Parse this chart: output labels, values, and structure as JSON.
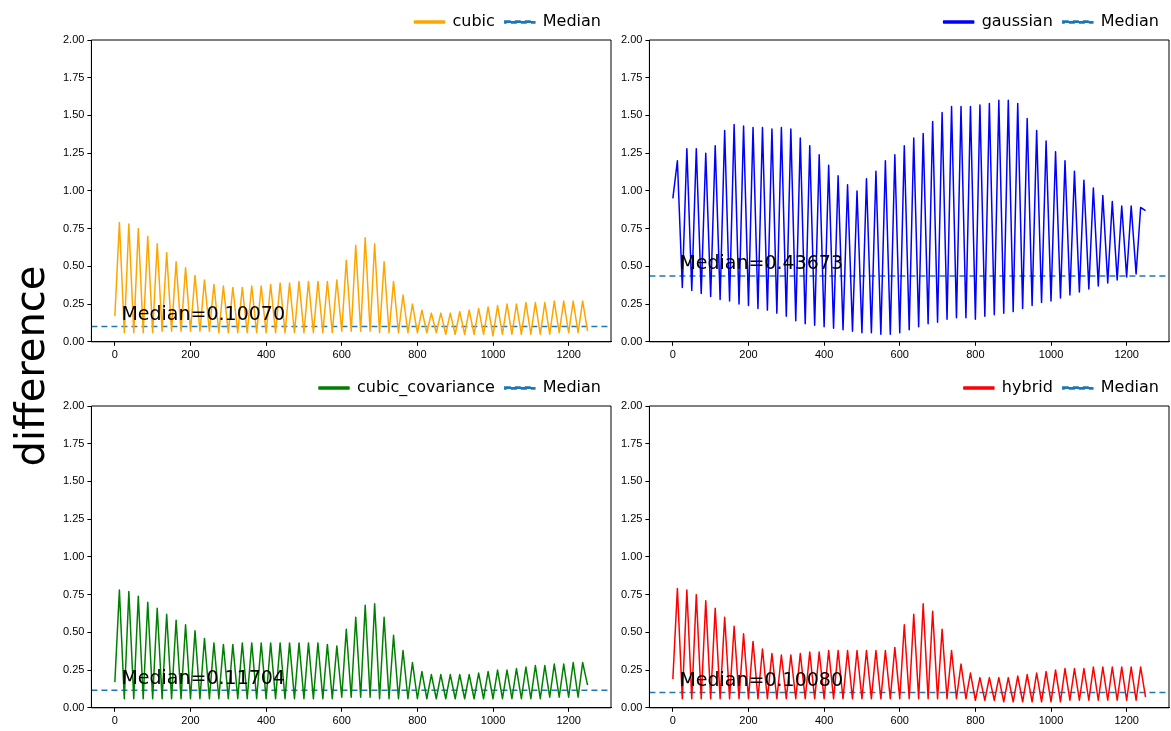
{
  "chart_data": [
    {
      "type": "line",
      "ylabel": "difference",
      "xlim": [
        -62,
        1312
      ],
      "xticks": [
        0,
        200,
        400,
        600,
        800,
        1000,
        1200
      ],
      "ylim": [
        0,
        2
      ],
      "yticks": [
        {
          "value": 0,
          "label": "0.00"
        },
        {
          "value": 0.25,
          "label": "0.25"
        },
        {
          "value": 0.5,
          "label": "0.50"
        },
        {
          "value": 0.75,
          "label": "0.75"
        },
        {
          "value": 1,
          "label": "1.00"
        },
        {
          "value": 1.25,
          "label": "1.25"
        },
        {
          "value": 1.5,
          "label": "1.50"
        },
        {
          "value": 1.75,
          "label": "1.75"
        },
        {
          "value": 2,
          "label": "2.00"
        }
      ],
      "grid": false,
      "legend": "top right",
      "line_style": "solid",
      "x": [
        0,
        12,
        25,
        37,
        50,
        62,
        75,
        87,
        100,
        112,
        125,
        137,
        150,
        162,
        175,
        187,
        200,
        212,
        225,
        237,
        250,
        262,
        275,
        287,
        300,
        312,
        325,
        337,
        350,
        362,
        375,
        387,
        400,
        412,
        425,
        437,
        450,
        462,
        475,
        487,
        500,
        512,
        525,
        537,
        550,
        562,
        575,
        587,
        600,
        612,
        625,
        637,
        650,
        662,
        675,
        687,
        700,
        712,
        725,
        737,
        750,
        762,
        775,
        787,
        800,
        812,
        825,
        837,
        850,
        862,
        875,
        887,
        900,
        912,
        925,
        937,
        950,
        962,
        975,
        987,
        1000,
        1012,
        1025,
        1037,
        1050,
        1062,
        1075,
        1087,
        1100,
        1112,
        1125,
        1137,
        1150,
        1162,
        1175,
        1187,
        1200,
        1212,
        1225,
        1237,
        1250
      ],
      "series": [
        {
          "name": "cubic",
          "color": "#ffa500",
          "values": [
            0.17,
            0.79,
            0.06,
            0.78,
            0.06,
            0.75,
            0.06,
            0.7,
            0.06,
            0.65,
            0.07,
            0.59,
            0.07,
            0.53,
            0.07,
            0.49,
            0.07,
            0.44,
            0.07,
            0.41,
            0.07,
            0.38,
            0.06,
            0.37,
            0.06,
            0.36,
            0.06,
            0.36,
            0.06,
            0.37,
            0.06,
            0.37,
            0.06,
            0.38,
            0.06,
            0.39,
            0.06,
            0.39,
            0.06,
            0.4,
            0.06,
            0.4,
            0.06,
            0.4,
            0.06,
            0.4,
            0.06,
            0.41,
            0.07,
            0.54,
            0.07,
            0.64,
            0.07,
            0.69,
            0.07,
            0.65,
            0.06,
            0.53,
            0.06,
            0.4,
            0.06,
            0.31,
            0.06,
            0.25,
            0.06,
            0.21,
            0.06,
            0.19,
            0.06,
            0.19,
            0.05,
            0.19,
            0.05,
            0.2,
            0.05,
            0.21,
            0.05,
            0.22,
            0.05,
            0.23,
            0.04,
            0.24,
            0.05,
            0.25,
            0.05,
            0.25,
            0.05,
            0.26,
            0.05,
            0.26,
            0.05,
            0.26,
            0.05,
            0.27,
            0.06,
            0.27,
            0.06,
            0.27,
            0.06,
            0.27,
            0.07
          ]
        }
      ],
      "ref_lines": [
        {
          "axis": "y",
          "value": 0.1007,
          "label": "Median",
          "color": "#1f77b4",
          "line_style": "dashed"
        }
      ],
      "annotations": [
        "Median=0.10070"
      ]
    },
    {
      "type": "line",
      "xlim": [
        -62,
        1312
      ],
      "xticks": [
        0,
        200,
        400,
        600,
        800,
        1000,
        1200
      ],
      "ylim": [
        0,
        2
      ],
      "yticks": [
        {
          "value": 0,
          "label": "0.00"
        },
        {
          "value": 0.25,
          "label": "0.25"
        },
        {
          "value": 0.5,
          "label": "0.50"
        },
        {
          "value": 0.75,
          "label": "0.75"
        },
        {
          "value": 1,
          "label": "1.00"
        },
        {
          "value": 1.25,
          "label": "1.25"
        },
        {
          "value": 1.5,
          "label": "1.50"
        },
        {
          "value": 1.75,
          "label": "1.75"
        },
        {
          "value": 2,
          "label": "2.00"
        }
      ],
      "grid": false,
      "legend": "top right",
      "line_style": "solid",
      "x": [
        0,
        12,
        25,
        37,
        50,
        62,
        75,
        87,
        100,
        112,
        125,
        137,
        150,
        162,
        175,
        187,
        200,
        212,
        225,
        237,
        250,
        262,
        275,
        287,
        300,
        312,
        325,
        337,
        350,
        362,
        375,
        387,
        400,
        412,
        425,
        437,
        450,
        462,
        475,
        487,
        500,
        512,
        525,
        537,
        550,
        562,
        575,
        587,
        600,
        612,
        625,
        637,
        650,
        662,
        675,
        687,
        700,
        712,
        725,
        737,
        750,
        762,
        775,
        787,
        800,
        812,
        825,
        837,
        850,
        862,
        875,
        887,
        900,
        912,
        925,
        937,
        950,
        962,
        975,
        987,
        1000,
        1012,
        1025,
        1037,
        1050,
        1062,
        1075,
        1087,
        1100,
        1112,
        1125,
        1137,
        1150,
        1162,
        1175,
        1187,
        1200,
        1212,
        1225,
        1237,
        1250
      ],
      "series": [
        {
          "name": "gaussian",
          "color": "#0000ff",
          "values": [
            0.95,
            1.2,
            0.36,
            1.28,
            0.34,
            1.28,
            0.32,
            1.25,
            0.3,
            1.3,
            0.28,
            1.4,
            0.27,
            1.44,
            0.25,
            1.43,
            0.24,
            1.42,
            0.22,
            1.42,
            0.21,
            1.41,
            0.19,
            1.42,
            0.17,
            1.41,
            0.14,
            1.35,
            0.12,
            1.3,
            0.11,
            1.24,
            0.1,
            1.17,
            0.09,
            1.1,
            0.08,
            1.04,
            0.07,
            1.0,
            0.06,
            1.08,
            0.06,
            1.13,
            0.05,
            1.2,
            0.05,
            1.24,
            0.06,
            1.3,
            0.08,
            1.35,
            0.1,
            1.38,
            0.12,
            1.46,
            0.13,
            1.52,
            0.15,
            1.56,
            0.16,
            1.56,
            0.16,
            1.56,
            0.15,
            1.57,
            0.17,
            1.58,
            0.18,
            1.6,
            0.19,
            1.6,
            0.2,
            1.58,
            0.22,
            1.48,
            0.24,
            1.4,
            0.26,
            1.33,
            0.27,
            1.26,
            0.29,
            1.2,
            0.31,
            1.13,
            0.33,
            1.07,
            0.35,
            1.02,
            0.37,
            0.97,
            0.39,
            0.93,
            0.41,
            0.9,
            0.43,
            0.9,
            0.45,
            0.89,
            0.87
          ]
        }
      ],
      "ref_lines": [
        {
          "axis": "y",
          "value": 0.43673,
          "label": "Median",
          "color": "#1f77b4",
          "line_style": "dashed"
        }
      ],
      "annotations": [
        "Median=0.43673"
      ]
    },
    {
      "type": "line",
      "xlim": [
        -62,
        1312
      ],
      "xticks": [
        0,
        200,
        400,
        600,
        800,
        1000,
        1200
      ],
      "ylim": [
        0,
        2
      ],
      "yticks": [
        {
          "value": 0,
          "label": "0.00"
        },
        {
          "value": 0.25,
          "label": "0.25"
        },
        {
          "value": 0.5,
          "label": "0.50"
        },
        {
          "value": 0.75,
          "label": "0.75"
        },
        {
          "value": 1,
          "label": "1.00"
        },
        {
          "value": 1.25,
          "label": "1.25"
        },
        {
          "value": 1.5,
          "label": "1.50"
        },
        {
          "value": 1.75,
          "label": "1.75"
        },
        {
          "value": 2,
          "label": "2.00"
        }
      ],
      "grid": false,
      "legend": "top right",
      "line_style": "solid",
      "x": [
        0,
        12,
        25,
        37,
        50,
        62,
        75,
        87,
        100,
        112,
        125,
        137,
        150,
        162,
        175,
        187,
        200,
        212,
        225,
        237,
        250,
        262,
        275,
        287,
        300,
        312,
        325,
        337,
        350,
        362,
        375,
        387,
        400,
        412,
        425,
        437,
        450,
        462,
        475,
        487,
        500,
        512,
        525,
        537,
        550,
        562,
        575,
        587,
        600,
        612,
        625,
        637,
        650,
        662,
        675,
        687,
        700,
        712,
        725,
        737,
        750,
        762,
        775,
        787,
        800,
        812,
        825,
        837,
        850,
        862,
        875,
        887,
        900,
        912,
        925,
        937,
        950,
        962,
        975,
        987,
        1000,
        1012,
        1025,
        1037,
        1050,
        1062,
        1075,
        1087,
        1100,
        1112,
        1125,
        1137,
        1150,
        1162,
        1175,
        1187,
        1200,
        1212,
        1225,
        1237,
        1250
      ],
      "series": [
        {
          "name": "cubic_covariance",
          "color": "#008000",
          "values": [
            0.17,
            0.78,
            0.06,
            0.77,
            0.06,
            0.74,
            0.06,
            0.7,
            0.06,
            0.66,
            0.06,
            0.62,
            0.06,
            0.58,
            0.06,
            0.55,
            0.06,
            0.51,
            0.06,
            0.46,
            0.06,
            0.43,
            0.06,
            0.42,
            0.06,
            0.42,
            0.06,
            0.43,
            0.06,
            0.43,
            0.06,
            0.43,
            0.06,
            0.43,
            0.06,
            0.43,
            0.06,
            0.43,
            0.06,
            0.43,
            0.06,
            0.43,
            0.06,
            0.43,
            0.06,
            0.42,
            0.06,
            0.41,
            0.07,
            0.52,
            0.07,
            0.6,
            0.07,
            0.68,
            0.07,
            0.69,
            0.06,
            0.6,
            0.06,
            0.48,
            0.06,
            0.38,
            0.06,
            0.3,
            0.06,
            0.24,
            0.06,
            0.22,
            0.06,
            0.22,
            0.06,
            0.22,
            0.06,
            0.22,
            0.06,
            0.22,
            0.06,
            0.23,
            0.06,
            0.24,
            0.06,
            0.25,
            0.06,
            0.25,
            0.06,
            0.26,
            0.06,
            0.27,
            0.06,
            0.28,
            0.06,
            0.28,
            0.07,
            0.29,
            0.07,
            0.29,
            0.07,
            0.3,
            0.07,
            0.3,
            0.15
          ]
        }
      ],
      "ref_lines": [
        {
          "axis": "y",
          "value": 0.11704,
          "label": "Median",
          "color": "#1f77b4",
          "line_style": "dashed"
        }
      ],
      "annotations": [
        "Median=0.11704"
      ]
    },
    {
      "type": "line",
      "xlim": [
        -62,
        1312
      ],
      "xticks": [
        0,
        200,
        400,
        600,
        800,
        1000,
        1200
      ],
      "ylim": [
        0,
        2
      ],
      "yticks": [
        {
          "value": 0,
          "label": "0.00"
        },
        {
          "value": 0.25,
          "label": "0.25"
        },
        {
          "value": 0.5,
          "label": "0.50"
        },
        {
          "value": 0.75,
          "label": "0.75"
        },
        {
          "value": 1,
          "label": "1.00"
        },
        {
          "value": 1.25,
          "label": "1.25"
        },
        {
          "value": 1.5,
          "label": "1.50"
        },
        {
          "value": 1.75,
          "label": "1.75"
        },
        {
          "value": 2,
          "label": "2.00"
        }
      ],
      "grid": false,
      "legend": "top right",
      "line_style": "solid",
      "x": [
        0,
        12,
        25,
        37,
        50,
        62,
        75,
        87,
        100,
        112,
        125,
        137,
        150,
        162,
        175,
        187,
        200,
        212,
        225,
        237,
        250,
        262,
        275,
        287,
        300,
        312,
        325,
        337,
        350,
        362,
        375,
        387,
        400,
        412,
        425,
        437,
        450,
        462,
        475,
        487,
        500,
        512,
        525,
        537,
        550,
        562,
        575,
        587,
        600,
        612,
        625,
        637,
        650,
        662,
        675,
        687,
        700,
        712,
        725,
        737,
        750,
        762,
        775,
        787,
        800,
        812,
        825,
        837,
        850,
        862,
        875,
        887,
        900,
        912,
        925,
        937,
        950,
        962,
        975,
        987,
        1000,
        1012,
        1025,
        1037,
        1050,
        1062,
        1075,
        1087,
        1100,
        1112,
        1125,
        1137,
        1150,
        1162,
        1175,
        1187,
        1200,
        1212,
        1225,
        1237,
        1250
      ],
      "series": [
        {
          "name": "hybrid",
          "color": "#ff0000",
          "values": [
            0.19,
            0.79,
            0.06,
            0.78,
            0.06,
            0.75,
            0.06,
            0.71,
            0.06,
            0.66,
            0.06,
            0.6,
            0.06,
            0.54,
            0.06,
            0.49,
            0.06,
            0.44,
            0.06,
            0.39,
            0.06,
            0.36,
            0.06,
            0.35,
            0.06,
            0.35,
            0.06,
            0.36,
            0.06,
            0.37,
            0.06,
            0.37,
            0.06,
            0.38,
            0.06,
            0.38,
            0.06,
            0.38,
            0.06,
            0.38,
            0.06,
            0.38,
            0.06,
            0.38,
            0.06,
            0.38,
            0.06,
            0.4,
            0.06,
            0.55,
            0.06,
            0.62,
            0.06,
            0.69,
            0.06,
            0.64,
            0.06,
            0.52,
            0.06,
            0.38,
            0.06,
            0.29,
            0.06,
            0.23,
            0.05,
            0.2,
            0.05,
            0.2,
            0.05,
            0.2,
            0.04,
            0.2,
            0.04,
            0.21,
            0.04,
            0.22,
            0.04,
            0.23,
            0.04,
            0.24,
            0.04,
            0.25,
            0.04,
            0.26,
            0.05,
            0.26,
            0.05,
            0.26,
            0.05,
            0.27,
            0.05,
            0.27,
            0.05,
            0.27,
            0.05,
            0.27,
            0.05,
            0.27,
            0.05,
            0.27,
            0.07
          ]
        }
      ],
      "ref_lines": [
        {
          "axis": "y",
          "value": 0.1008,
          "label": "Median",
          "color": "#1f77b4",
          "line_style": "dashed"
        }
      ],
      "annotations": [
        "Median=0.10080"
      ]
    }
  ]
}
